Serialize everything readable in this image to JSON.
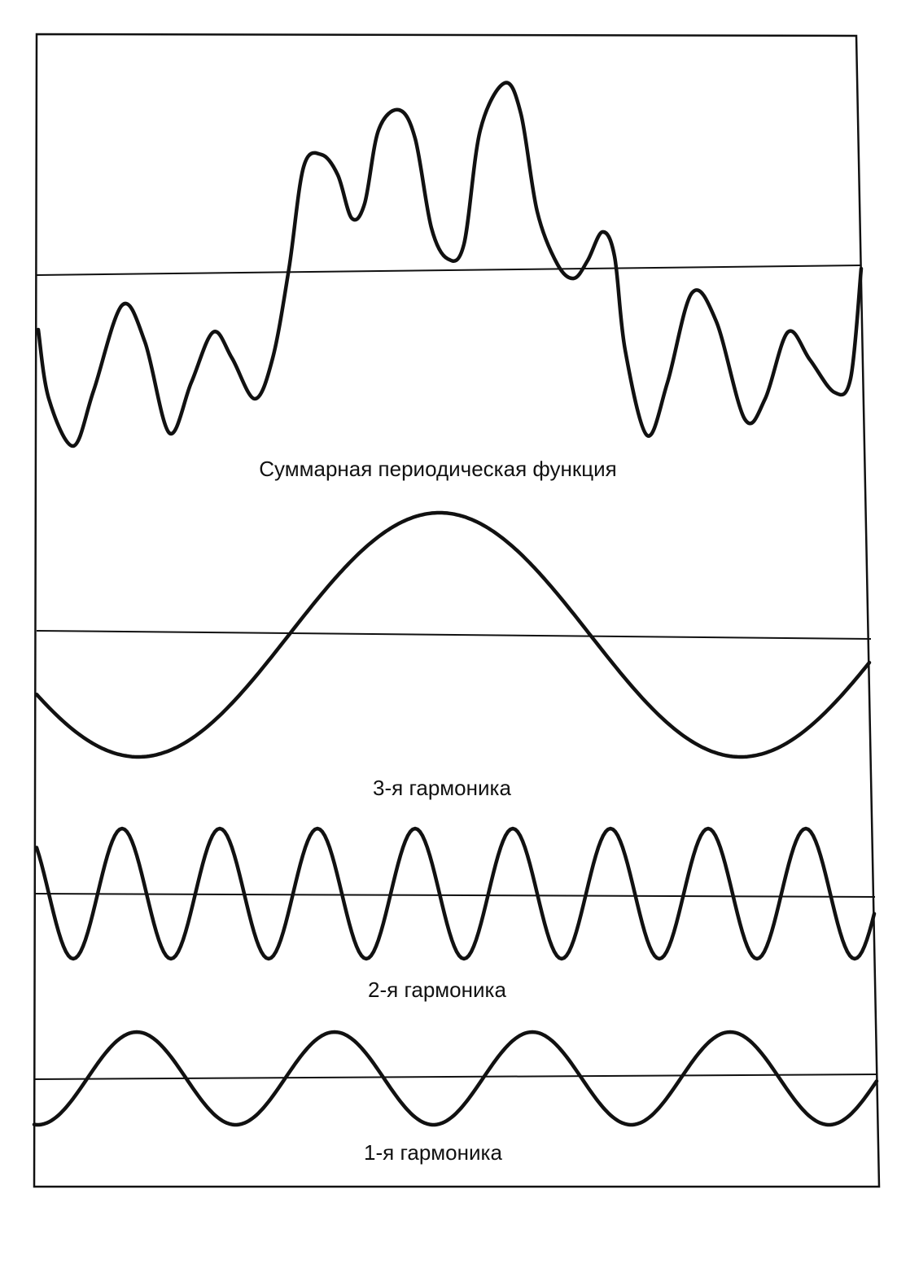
{
  "panels": [
    {
      "label": "Суммарная периодическая функция"
    },
    {
      "label": "3-я гармоника"
    },
    {
      "label": "2-я гармоника"
    },
    {
      "label": "1-я гармоника"
    }
  ]
}
